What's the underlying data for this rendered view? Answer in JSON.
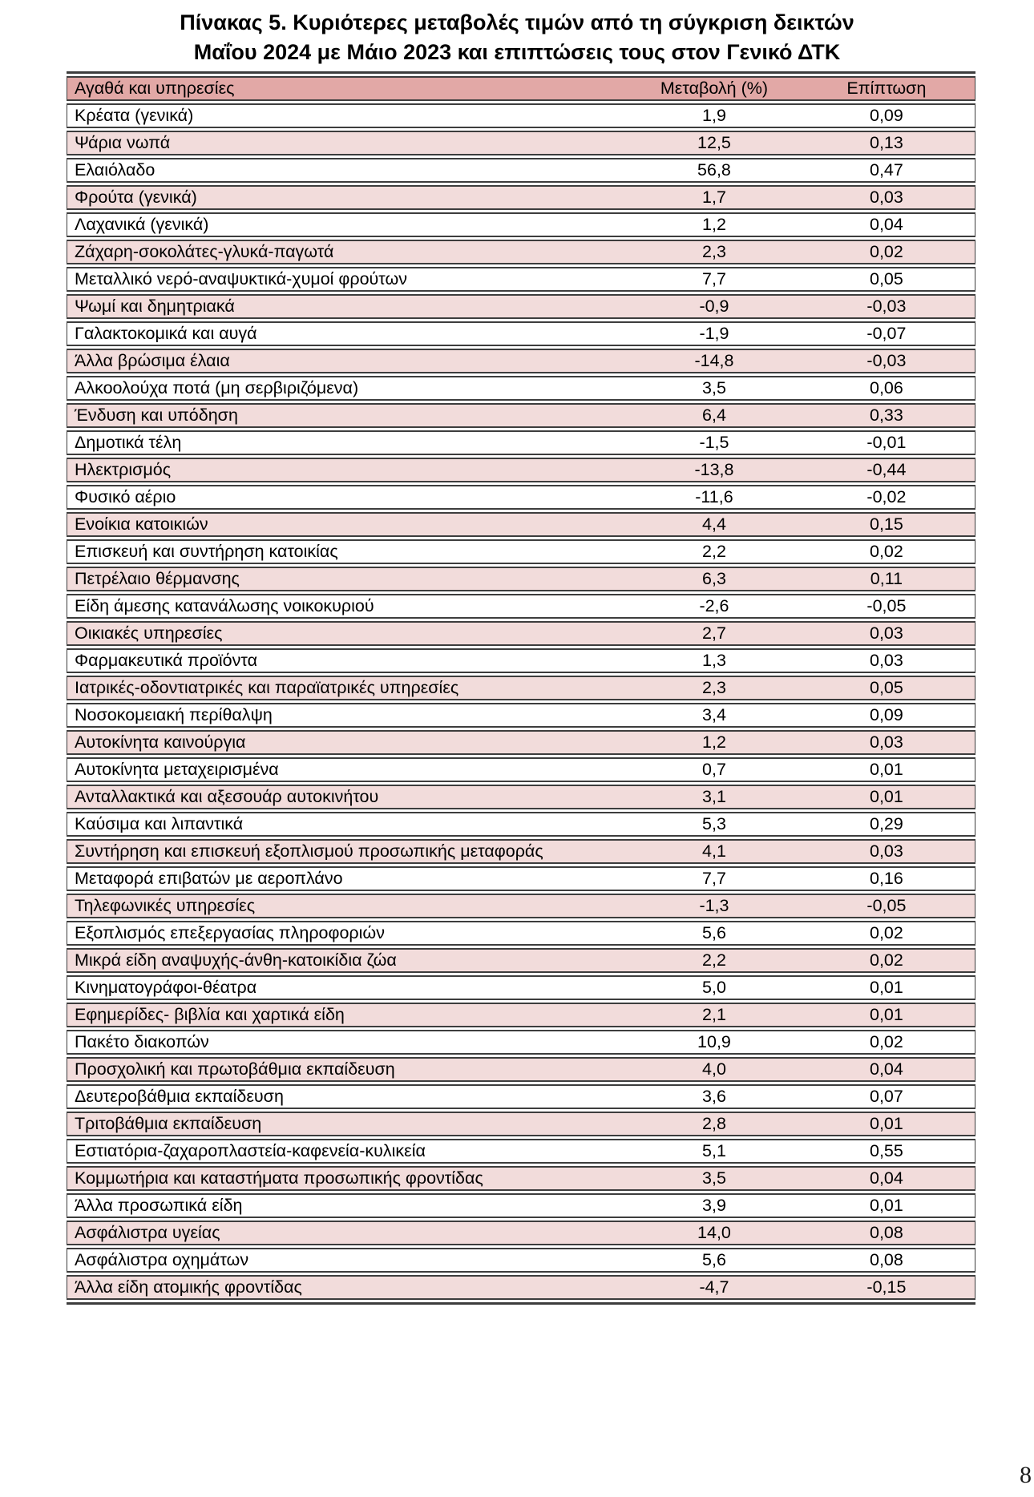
{
  "page": {
    "number": "8"
  },
  "table": {
    "title_line1": "Πίνακας  5. Κυριότερες μεταβολές τιμών από τη σύγκριση δεικτών",
    "title_line2": "Μαΐου 2024 με Μάιο 2023 και επιπτώσεις τους στον Γενικό ΔΤΚ",
    "columns": [
      "Αγαθά και υπηρεσίες",
      "Μεταβολή (%)",
      "Επίπτωση"
    ],
    "colors": {
      "header_bg": "#e2a8a6",
      "stripe_bg": "#f2dcdb",
      "border": "#3d3d3d"
    },
    "rows": [
      {
        "label": "Κρέατα (γενικά)",
        "change": "1,9",
        "impact": "0,09"
      },
      {
        "label": "Ψάρια νωπά",
        "change": "12,5",
        "impact": "0,13"
      },
      {
        "label": "Ελαιόλαδο",
        "change": "56,8",
        "impact": "0,47"
      },
      {
        "label": "Φρούτα (γενικά)",
        "change": "1,7",
        "impact": "0,03"
      },
      {
        "label": "Λαχανικά (γενικά)",
        "change": "1,2",
        "impact": "0,04"
      },
      {
        "label": "Ζάχαρη-σοκολάτες-γλυκά-παγωτά",
        "change": "2,3",
        "impact": "0,02"
      },
      {
        "label": "Μεταλλικό νερό-αναψυκτικά-χυμοί φρούτων",
        "change": "7,7",
        "impact": "0,05"
      },
      {
        "label": "Ψωμί και δημητριακά",
        "change": "-0,9",
        "impact": "-0,03"
      },
      {
        "label": "Γαλακτοκομικά και αυγά",
        "change": "-1,9",
        "impact": "-0,07"
      },
      {
        "label": "Άλλα βρώσιμα έλαια",
        "change": "-14,8",
        "impact": "-0,03"
      },
      {
        "label": "Αλκοολούχα ποτά (μη σερβιριζόμενα)",
        "change": "3,5",
        "impact": "0,06"
      },
      {
        "label": "Ένδυση και υπόδηση",
        "change": "6,4",
        "impact": "0,33"
      },
      {
        "label": "Δημοτικά τέλη",
        "change": "-1,5",
        "impact": "-0,01"
      },
      {
        "label": "Ηλεκτρισμός",
        "change": "-13,8",
        "impact": "-0,44"
      },
      {
        "label": "Φυσικό αέριο",
        "change": "-11,6",
        "impact": "-0,02"
      },
      {
        "label": "Ενοίκια κατοικιών",
        "change": "4,4",
        "impact": "0,15"
      },
      {
        "label": "Επισκευή και συντήρηση κατοικίας",
        "change": "2,2",
        "impact": "0,02"
      },
      {
        "label": "Πετρέλαιο θέρμανσης",
        "change": "6,3",
        "impact": "0,11"
      },
      {
        "label": "Είδη άμεσης κατανάλωσης νοικοκυριού",
        "change": "-2,6",
        "impact": "-0,05"
      },
      {
        "label": "Οικιακές υπηρεσίες",
        "change": "2,7",
        "impact": "0,03"
      },
      {
        "label": "Φαρμακευτικά προϊόντα",
        "change": "1,3",
        "impact": "0,03"
      },
      {
        "label": "Ιατρικές-οδοντιατρικές και παραϊατρικές υπηρεσίες",
        "change": "2,3",
        "impact": "0,05"
      },
      {
        "label": "Νοσοκομειακή περίθαλψη",
        "change": "3,4",
        "impact": "0,09"
      },
      {
        "label": "Αυτοκίνητα καινούργια",
        "change": "1,2",
        "impact": "0,03"
      },
      {
        "label": "Αυτοκίνητα μεταχειρισμένα",
        "change": "0,7",
        "impact": "0,01"
      },
      {
        "label": "Ανταλλακτικά και αξεσουάρ αυτοκινήτου",
        "change": "3,1",
        "impact": "0,01"
      },
      {
        "label": "Καύσιμα και λιπαντικά",
        "change": "5,3",
        "impact": "0,29"
      },
      {
        "label": "Συντήρηση και επισκευή εξοπλισμού προσωπικής μεταφοράς",
        "change": "4,1",
        "impact": "0,03"
      },
      {
        "label": "Μεταφορά επιβατών με αεροπλάνο",
        "change": "7,7",
        "impact": "0,16"
      },
      {
        "label": "Τηλεφωνικές υπηρεσίες",
        "change": "-1,3",
        "impact": "-0,05"
      },
      {
        "label": "Εξοπλισμός επεξεργασίας πληροφοριών",
        "change": "5,6",
        "impact": "0,02"
      },
      {
        "label": "Μικρά είδη αναψυχής-άνθη-κατοικίδια ζώα",
        "change": "2,2",
        "impact": "0,02"
      },
      {
        "label": "Κινηματογράφοι-θέατρα",
        "change": "5,0",
        "impact": "0,01"
      },
      {
        "label": "Εφημερίδες- βιβλία και χαρτικά είδη",
        "change": "2,1",
        "impact": "0,01"
      },
      {
        "label": "Πακέτο διακοπών",
        "change": "10,9",
        "impact": "0,02"
      },
      {
        "label": "Προσχολική και πρωτοβάθμια εκπαίδευση",
        "change": "4,0",
        "impact": "0,04"
      },
      {
        "label": "Δευτεροβάθμια εκπαίδευση",
        "change": "3,6",
        "impact": "0,07"
      },
      {
        "label": "Τριτοβάθμια εκπαίδευση",
        "change": "2,8",
        "impact": "0,01"
      },
      {
        "label": "Εστιατόρια-ζαχαροπλαστεία-καφενεία-κυλικεία",
        "change": "5,1",
        "impact": "0,55"
      },
      {
        "label": "Κομμωτήρια και καταστήματα προσωπικής φροντίδας",
        "change": "3,5",
        "impact": "0,04"
      },
      {
        "label": "Άλλα προσωπικά είδη",
        "change": "3,9",
        "impact": "0,01"
      },
      {
        "label": "Ασφάλιστρα υγείας",
        "change": "14,0",
        "impact": "0,08"
      },
      {
        "label": "Ασφάλιστρα οχημάτων",
        "change": "5,6",
        "impact": "0,08"
      },
      {
        "label": "Άλλα είδη ατομικής φροντίδας",
        "change": "-4,7",
        "impact": "-0,15"
      }
    ]
  }
}
